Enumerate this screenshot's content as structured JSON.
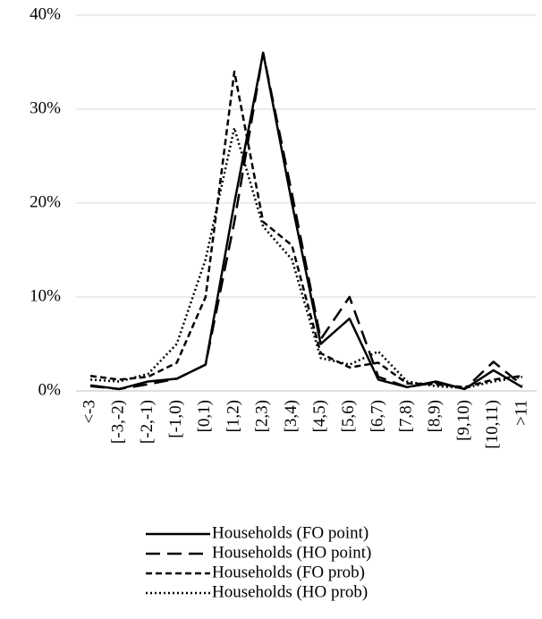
{
  "chart_data": {
    "type": "line",
    "categories": [
      "<-3",
      "[-3,-2)",
      "[-2,-1)",
      "[-1,0)",
      "[0,1)",
      "[1,2)",
      "[2,3)",
      "[3,4)",
      "[4,5)",
      "[5,6)",
      "[6,7)",
      "[7,8)",
      "[8,9)",
      "[9,10)",
      "[10,11)",
      ">11"
    ],
    "series": [
      {
        "name": "Households (FO point)",
        "color": "#000000",
        "line_style": "solid",
        "values": [
          0.6,
          0.2,
          1.0,
          1.3,
          2.8,
          20,
          36,
          20,
          5,
          7.7,
          1.2,
          0.4,
          1.0,
          0.2,
          2.2,
          0.4
        ]
      },
      {
        "name": "Households (HO point)",
        "color": "#000000",
        "line_style": "long-dash",
        "values": [
          0.5,
          0.2,
          0.7,
          1.3,
          2.8,
          18,
          36,
          21,
          5.5,
          10,
          1.5,
          0.4,
          0.9,
          0.2,
          3.1,
          0.6
        ]
      },
      {
        "name": "Households (FO prob)",
        "color": "#000000",
        "line_style": "short-dash",
        "values": [
          1.6,
          1.2,
          1.5,
          3,
          10,
          34,
          18,
          15.5,
          4,
          2.5,
          3,
          0.8,
          0.7,
          0.4,
          1.2,
          1.6
        ]
      },
      {
        "name": "Households (HO prob)",
        "color": "#000000",
        "line_style": "dot",
        "values": [
          1.2,
          1.0,
          1.8,
          5,
          14,
          28,
          17.5,
          14,
          3.5,
          2.8,
          4.2,
          1.0,
          0.5,
          0.3,
          1.0,
          1.5
        ]
      }
    ],
    "ylim": [
      0,
      40
    ],
    "yticks": [
      {
        "value": 0,
        "label": "0%"
      },
      {
        "value": 10,
        "label": "10%"
      },
      {
        "value": 20,
        "label": "20%"
      },
      {
        "value": 30,
        "label": "30%"
      },
      {
        "value": 40,
        "label": "40%"
      }
    ],
    "grid": true,
    "legend": "bottom"
  }
}
